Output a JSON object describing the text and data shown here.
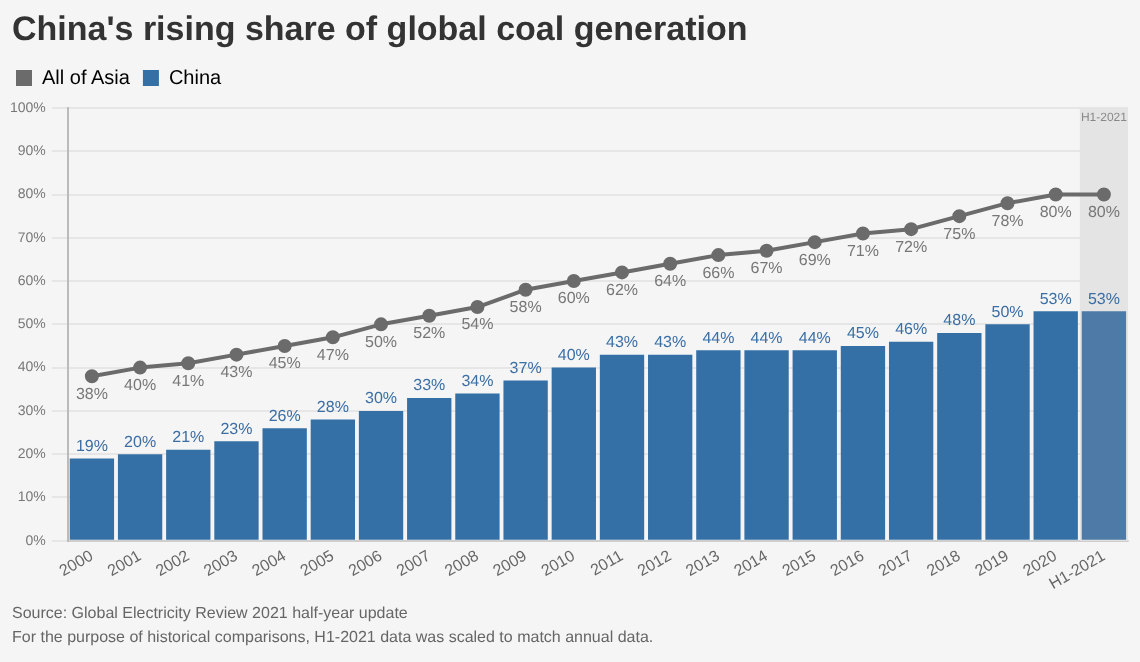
{
  "chart_data": {
    "type": "bar",
    "title": "China's rising share of global coal generation",
    "categories": [
      "2000",
      "2001",
      "2002",
      "2003",
      "2004",
      "2005",
      "2006",
      "2007",
      "2008",
      "2009",
      "2010",
      "2011",
      "2012",
      "2013",
      "2014",
      "2015",
      "2016",
      "2017",
      "2018",
      "2019",
      "2020",
      "H1-2021"
    ],
    "series": [
      {
        "name": "All of Asia",
        "type": "line",
        "color": "#6b6b6b",
        "values": [
          38,
          40,
          41,
          43,
          45,
          47,
          50,
          52,
          54,
          58,
          60,
          62,
          64,
          66,
          67,
          69,
          71,
          72,
          75,
          78,
          80,
          80
        ],
        "value_labels": [
          "38%",
          "40%",
          "41%",
          "43%",
          "45%",
          "47%",
          "50%",
          "52%",
          "54%",
          "58%",
          "60%",
          "62%",
          "64%",
          "66%",
          "67%",
          "69%",
          "71%",
          "72%",
          "75%",
          "78%",
          "80%",
          "80%"
        ]
      },
      {
        "name": "China",
        "color": "#3470a5",
        "colors": [
          "#3470a5",
          "#3470a5",
          "#3470a5",
          "#3470a5",
          "#3470a5",
          "#3470a5",
          "#3470a5",
          "#3470a5",
          "#3470a5",
          "#3470a5",
          "#3470a5",
          "#3470a5",
          "#3470a5",
          "#3470a5",
          "#3470a5",
          "#3470a5",
          "#3470a5",
          "#3470a5",
          "#3470a5",
          "#3470a5",
          "#3470a5",
          "#4d7aa6"
        ],
        "values": [
          19,
          20,
          21,
          23,
          26,
          28,
          30,
          33,
          34,
          37,
          40,
          43,
          43,
          44,
          44,
          44,
          45,
          46,
          48,
          50,
          53,
          53
        ],
        "value_labels": [
          "19%",
          "20%",
          "21%",
          "23%",
          "26%",
          "28%",
          "30%",
          "33%",
          "34%",
          "37%",
          "40%",
          "43%",
          "43%",
          "44%",
          "44%",
          "44%",
          "45%",
          "46%",
          "48%",
          "50%",
          "53%",
          "53%"
        ]
      }
    ],
    "ylim": [
      0,
      100
    ],
    "yticks": [
      {
        "value": 0,
        "label": "0%"
      },
      {
        "value": 10,
        "label": "10%"
      },
      {
        "value": 20,
        "label": "20%"
      },
      {
        "value": 30,
        "label": "30%"
      },
      {
        "value": 40,
        "label": "40%"
      },
      {
        "value": 50,
        "label": "50%"
      },
      {
        "value": 60,
        "label": "60%"
      },
      {
        "value": 70,
        "label": "70%"
      },
      {
        "value": 80,
        "label": "80%"
      },
      {
        "value": 90,
        "label": "90%"
      },
      {
        "value": 100,
        "label": "100%"
      }
    ],
    "grid": "y",
    "legend": "top left",
    "marker": "circle",
    "line_style": "solid",
    "bands": [
      {
        "axis": "x",
        "from": "H1-2021",
        "to": "H1-2021",
        "label": "H1-2021",
        "color": "#e4e4e4"
      }
    ],
    "annotations": [
      "Source: Global Electricity Review 2021 half-year update",
      "For the purpose of historical comparisons, H1-2021 data was scaled to match annual data."
    ]
  }
}
